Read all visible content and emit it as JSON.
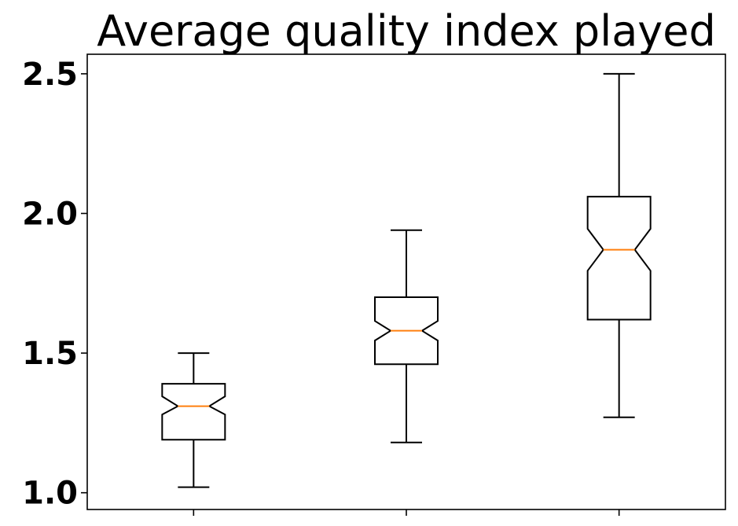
{
  "chart_data": {
    "type": "boxplot",
    "title": "Average quality index played",
    "xlabel": "",
    "ylabel": "",
    "notched": true,
    "ylim": [
      0.94,
      2.57
    ],
    "yticks": [
      1.0,
      1.5,
      2.0,
      2.5
    ],
    "ytick_labels": [
      "1.0",
      "1.5",
      "2.0",
      "2.5"
    ],
    "xtick_labels": [
      "",
      "",
      ""
    ],
    "grid": false,
    "boxes": [
      {
        "whislo": 1.02,
        "q1": 1.19,
        "med": 1.31,
        "q3": 1.39,
        "whishi": 1.5,
        "cilo": 1.28,
        "cihi": 1.345
      },
      {
        "whislo": 1.18,
        "q1": 1.46,
        "med": 1.58,
        "q3": 1.7,
        "whishi": 1.94,
        "cilo": 1.545,
        "cihi": 1.615
      },
      {
        "whislo": 1.27,
        "q1": 1.62,
        "med": 1.87,
        "q3": 2.06,
        "whishi": 2.5,
        "cilo": 1.795,
        "cihi": 1.945
      }
    ],
    "colors": {
      "box": "#000000",
      "median": "#ff7f0e"
    }
  }
}
